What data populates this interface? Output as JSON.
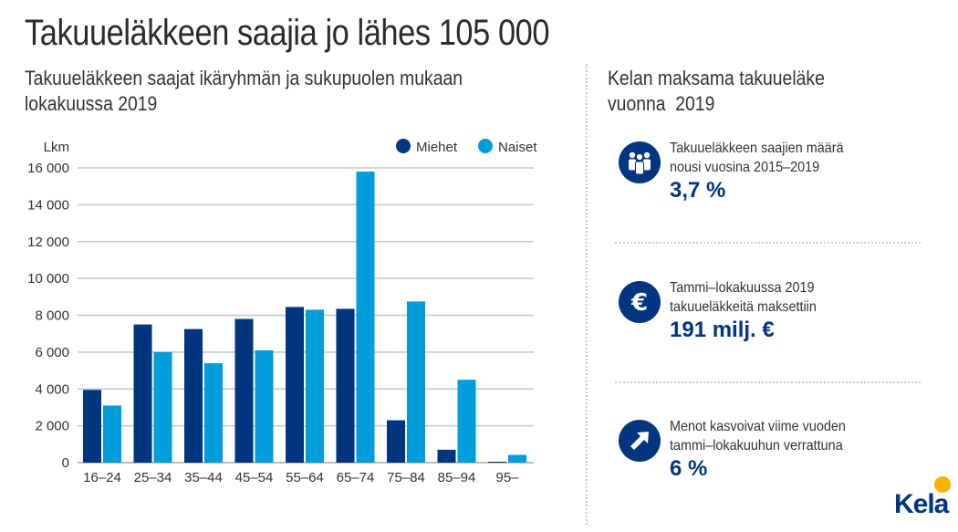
{
  "header": {
    "title": "Takuueläkkeen saajia jo lähes 105 000",
    "subtitle_line1": "Takuueläkkeen saajat ikäryhmän ja sukupuolen mukaan",
    "subtitle_line2": "lokakuussa 2019"
  },
  "chart_data": {
    "type": "bar",
    "title": "Takuueläkkeen saajat ikäryhmän ja sukupuolen mukaan lokakuussa 2019",
    "xlabel": "",
    "ylabel": "Lkm",
    "ylim": [
      0,
      16000
    ],
    "yticks": [
      0,
      2000,
      4000,
      6000,
      8000,
      10000,
      12000,
      14000,
      16000
    ],
    "ytick_labels": [
      "0",
      "2 000",
      "4 000",
      "6 000",
      "8 000",
      "10 000",
      "12 000",
      "14 000",
      "16 000"
    ],
    "categories": [
      "16–24",
      "25–34",
      "35–44",
      "45–54",
      "55–64",
      "65–74",
      "75–84",
      "85–94",
      "95–"
    ],
    "series": [
      {
        "name": "Miehet",
        "color": "#003580",
        "values": [
          3950,
          7500,
          7250,
          7800,
          8450,
          8350,
          2300,
          700,
          50
        ]
      },
      {
        "name": "Naiset",
        "color": "#009ddb",
        "values": [
          3100,
          6000,
          5400,
          6100,
          8300,
          15800,
          8750,
          4500,
          420
        ]
      }
    ],
    "legend_position": "top-right",
    "grid": true
  },
  "right_panel": {
    "title": "Kelan maksama takuueläke\nvuonna  2019",
    "stats": [
      {
        "icon": "people-group-icon",
        "line1": "Takuueläkkeen saajien määrä",
        "line2": "nousi vuosina 2015–2019",
        "value": "3,7 %"
      },
      {
        "icon": "euro-icon",
        "line1": "Tammi–lokakuussa 2019",
        "line2": "takuueläkkeitä maksettiin",
        "value": "191 milj. €"
      },
      {
        "icon": "arrow-up-right-icon",
        "line1": "Menot kasvoivat viime vuoden",
        "line2": "tammi–lokakuuhun verrattuna",
        "value": "6 %"
      }
    ]
  },
  "logo": {
    "text": "Kela"
  },
  "colors": {
    "primary": "#003580",
    "secondary": "#009ddb",
    "accent": "#f9b200"
  }
}
